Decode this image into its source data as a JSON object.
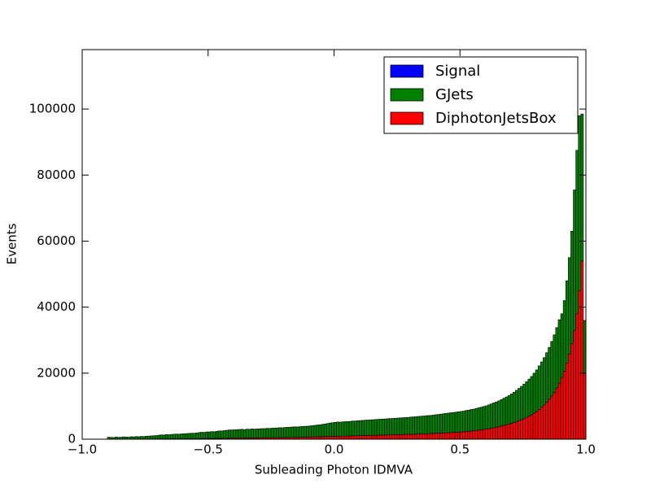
{
  "chart_data": {
    "type": "histogram",
    "xlabel": "Subleading Photon IDMVA",
    "ylabel": "Events",
    "stacked": true,
    "legend": "upper right",
    "xlim": [
      -1.0,
      1.0
    ],
    "ylim": [
      0,
      118000
    ],
    "xticks": [
      {
        "value": -1.0,
        "label": "−1.0"
      },
      {
        "value": -0.5,
        "label": "−0.5"
      },
      {
        "value": 0.0,
        "label": "0.0"
      },
      {
        "value": 0.5,
        "label": "0.5"
      },
      {
        "value": 1.0,
        "label": "1.0"
      }
    ],
    "yticks": [
      0,
      20000,
      40000,
      60000,
      80000,
      100000
    ],
    "bins": [
      -1.0,
      -0.99,
      -0.98,
      -0.97,
      -0.96,
      -0.95,
      -0.94,
      -0.93,
      -0.92,
      -0.91,
      -0.9,
      -0.89,
      -0.88,
      -0.87,
      -0.86,
      -0.85,
      -0.84,
      -0.83,
      -0.82,
      -0.81,
      -0.8,
      -0.79,
      -0.78,
      -0.77,
      -0.76,
      -0.75,
      -0.74,
      -0.73,
      -0.72,
      -0.71,
      -0.7,
      -0.69,
      -0.68,
      -0.67,
      -0.66,
      -0.65,
      -0.64,
      -0.63,
      -0.62,
      -0.61,
      -0.6,
      -0.59,
      -0.58,
      -0.57,
      -0.56,
      -0.55,
      -0.54,
      -0.53,
      -0.52,
      -0.51,
      -0.5,
      -0.49,
      -0.48,
      -0.47,
      -0.46,
      -0.45,
      -0.44,
      -0.43,
      -0.42,
      -0.41,
      -0.4,
      -0.39,
      -0.38,
      -0.37,
      -0.36,
      -0.35,
      -0.34,
      -0.33,
      -0.32,
      -0.31,
      -0.3,
      -0.29,
      -0.28,
      -0.27,
      -0.26,
      -0.25,
      -0.24,
      -0.23,
      -0.22,
      -0.21,
      -0.2,
      -0.19,
      -0.18,
      -0.17,
      -0.16,
      -0.15,
      -0.14,
      -0.13,
      -0.12,
      -0.11,
      -0.1,
      -0.09,
      -0.08,
      -0.07,
      -0.06,
      -0.05,
      -0.04,
      -0.03,
      -0.02,
      -0.01,
      0.0,
      0.01,
      0.02,
      0.03,
      0.04,
      0.05,
      0.06,
      0.07,
      0.08,
      0.09,
      0.1,
      0.11,
      0.12,
      0.13,
      0.14,
      0.15,
      0.16,
      0.17,
      0.18,
      0.19,
      0.2,
      0.21,
      0.22,
      0.23,
      0.24,
      0.25,
      0.26,
      0.27,
      0.28,
      0.29,
      0.3,
      0.31,
      0.32,
      0.33,
      0.34,
      0.35,
      0.36,
      0.37,
      0.38,
      0.39,
      0.4,
      0.41,
      0.42,
      0.43,
      0.44,
      0.45,
      0.46,
      0.47,
      0.48,
      0.49,
      0.5,
      0.51,
      0.52,
      0.53,
      0.54,
      0.55,
      0.56,
      0.57,
      0.58,
      0.59,
      0.6,
      0.61,
      0.62,
      0.63,
      0.64,
      0.65,
      0.66,
      0.67,
      0.68,
      0.69,
      0.7,
      0.71,
      0.72,
      0.73,
      0.74,
      0.75,
      0.76,
      0.77,
      0.78,
      0.79,
      0.8,
      0.81,
      0.82,
      0.83,
      0.84,
      0.85,
      0.86,
      0.87,
      0.88,
      0.89,
      0.9,
      0.91,
      0.92,
      0.93,
      0.94,
      0.95,
      0.96,
      0.97,
      0.98,
      0.99,
      1.0
    ],
    "series": [
      {
        "name": "Signal",
        "color": "#0000ff",
        "values": [
          0,
          0,
          0,
          0,
          0,
          0,
          0,
          0,
          0,
          0,
          0,
          0,
          0,
          0,
          0,
          0,
          0,
          0,
          0,
          0,
          0,
          0,
          0,
          0,
          0,
          0,
          0,
          0,
          0,
          0,
          0,
          0,
          0,
          0,
          0,
          0,
          0,
          0,
          0,
          0,
          0,
          0,
          0,
          0,
          0,
          0,
          0,
          0,
          0,
          0,
          0,
          0,
          0,
          0,
          0,
          0,
          0,
          0,
          0,
          0,
          0,
          0,
          0,
          0,
          0,
          0,
          0,
          0,
          0,
          0,
          0,
          0,
          0,
          0,
          0,
          0,
          0,
          0,
          0,
          0,
          0,
          0,
          0,
          0,
          0,
          0,
          0,
          0,
          0,
          0,
          0,
          0,
          0,
          0,
          0,
          0,
          0,
          0,
          0,
          0,
          0,
          0,
          0,
          0,
          0,
          0,
          0,
          0,
          0,
          0,
          0,
          0,
          0,
          0,
          0,
          0,
          0,
          0,
          0,
          0,
          0,
          0,
          0,
          0,
          0,
          0,
          0,
          0,
          0,
          0,
          0,
          0,
          0,
          0,
          0,
          0,
          0,
          0,
          0,
          0,
          0,
          0,
          0,
          0,
          0,
          0,
          0,
          0,
          0,
          0,
          0,
          0,
          0,
          0,
          0,
          0,
          0,
          0,
          0,
          0,
          0,
          0,
          0,
          0,
          0,
          0,
          0,
          0,
          0,
          0,
          0,
          0,
          0,
          0,
          0,
          0,
          0,
          0,
          0,
          0,
          0,
          0,
          0,
          0,
          0,
          0,
          0,
          0,
          0,
          0,
          0,
          0,
          0,
          0,
          0,
          0,
          0,
          0,
          0,
          0
        ]
      },
      {
        "name": "GJets",
        "color": "#008000",
        "values": [
          0,
          0,
          0,
          0,
          0,
          0,
          0,
          0,
          0,
          0,
          580,
          530,
          470,
          630,
          520,
          570,
          660,
          620,
          560,
          710,
          650,
          750,
          690,
          790,
          730,
          830,
          870,
          920,
          960,
          1010,
          1100,
          1200,
          1140,
          1290,
          1230,
          1330,
          1370,
          1420,
          1360,
          1460,
          1500,
          1550,
          1590,
          1630,
          1630,
          1720,
          1810,
          1900,
          1850,
          1990,
          1980,
          2070,
          2010,
          2150,
          2240,
          2230,
          2320,
          2410,
          2500,
          2490,
          2530,
          2570,
          2610,
          2650,
          2540,
          2680,
          2620,
          2710,
          2650,
          2690,
          2730,
          2770,
          2760,
          2850,
          2790,
          2880,
          2920,
          2910,
          3000,
          2940,
          3030,
          3070,
          3060,
          3150,
          3190,
          3120,
          3200,
          3230,
          3260,
          3290,
          3320,
          3400,
          3480,
          3560,
          3590,
          3720,
          3800,
          3930,
          4060,
          4140,
          4220,
          4300,
          4230,
          4310,
          4340,
          4370,
          4400,
          4480,
          4460,
          4540,
          4570,
          4600,
          4630,
          4660,
          4690,
          4720,
          4750,
          4780,
          4810,
          4840,
          4870,
          4900,
          4930,
          4960,
          4990,
          5020,
          5050,
          5080,
          5110,
          5140,
          5220,
          5250,
          5270,
          5340,
          5360,
          5380,
          5450,
          5470,
          5490,
          5560,
          5620,
          5680,
          5740,
          5800,
          5860,
          5920,
          5980,
          6040,
          6100,
          6150,
          6200,
          6250,
          6400,
          6400,
          6550,
          6550,
          6650,
          6750,
          6850,
          6950,
          7050,
          7200,
          7350,
          7500,
          7650,
          7800,
          8000,
          8200,
          8400,
          8600,
          8900,
          9150,
          9500,
          9800,
          10100,
          10500,
          10800,
          11200,
          11600,
          12100,
          12600,
          13200,
          13700,
          14300,
          15000,
          15700,
          16500,
          17400,
          18300,
          19200,
          19300,
          21400,
          25000,
          29200,
          34000,
          42500,
          49500,
          53000,
          44500,
          16000
        ]
      },
      {
        "name": "DiphotonJetsBox",
        "color": "#ff0000",
        "values": [
          0,
          0,
          0,
          0,
          0,
          0,
          0,
          0,
          0,
          0,
          20,
          20,
          30,
          20,
          30,
          30,
          40,
          30,
          40,
          40,
          50,
          50,
          60,
          60,
          70,
          70,
          80,
          80,
          90,
          90,
          100,
          100,
          110,
          110,
          120,
          120,
          130,
          130,
          140,
          140,
          150,
          150,
          160,
          170,
          170,
          180,
          190,
          200,
          200,
          210,
          220,
          230,
          240,
          250,
          260,
          270,
          280,
          290,
          300,
          310,
          320,
          330,
          340,
          350,
          360,
          370,
          380,
          390,
          400,
          410,
          420,
          430,
          440,
          450,
          460,
          470,
          480,
          490,
          500,
          510,
          520,
          530,
          540,
          550,
          560,
          580,
          600,
          620,
          640,
          660,
          680,
          700,
          720,
          740,
          760,
          780,
          800,
          820,
          840,
          860,
          880,
          900,
          920,
          940,
          960,
          980,
          1000,
          1020,
          1040,
          1060,
          1080,
          1100,
          1120,
          1140,
          1160,
          1180,
          1200,
          1220,
          1240,
          1260,
          1280,
          1300,
          1320,
          1340,
          1360,
          1380,
          1400,
          1420,
          1440,
          1460,
          1480,
          1500,
          1530,
          1560,
          1590,
          1620,
          1650,
          1680,
          1710,
          1740,
          1780,
          1820,
          1860,
          1900,
          1940,
          1980,
          2020,
          2060,
          2100,
          2150,
          2200,
          2250,
          2300,
          2400,
          2450,
          2550,
          2650,
          2750,
          2850,
          2950,
          3050,
          3200,
          3350,
          3500,
          3650,
          3800,
          4000,
          4200,
          4400,
          4600,
          4800,
          5050,
          5300,
          5600,
          5900,
          6200,
          6600,
          7000,
          7400,
          7900,
          8400,
          9000,
          9700,
          10400,
          11200,
          12100,
          13100,
          14200,
          15500,
          17000,
          18700,
          20600,
          23000,
          25800,
          29000,
          33000,
          38000,
          45000,
          54000,
          20000
        ]
      }
    ]
  }
}
